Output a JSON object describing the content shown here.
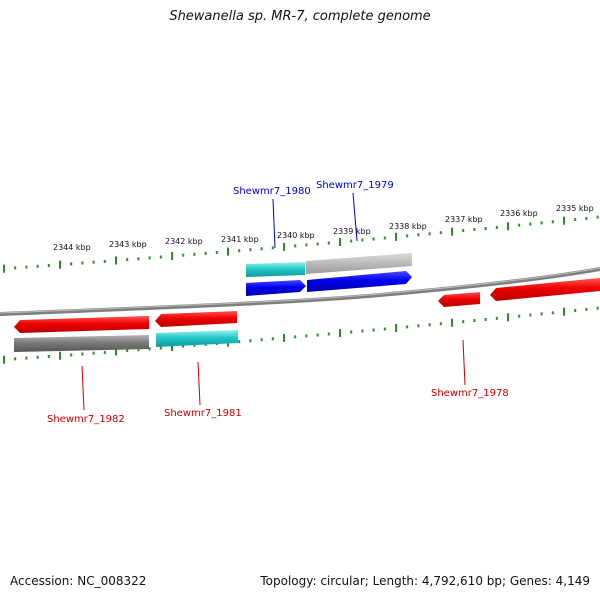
{
  "title": "Shewanella sp. MR-7, complete genome",
  "footer": {
    "accession": "Accession: NC_008322",
    "summary": "Topology: circular; Length: 4,792,610 bp; Genes: 4,149"
  },
  "colors": {
    "backbone": "#7f7f7f",
    "tick": "#2e8b2e",
    "forward_gene": "#0000ee",
    "reverse_gene": "#ee0000",
    "forward_label": "#0000cc",
    "reverse_label": "#cc0000",
    "cyan_feature": "#22c8c8",
    "gray_feature": "#909090"
  },
  "tick_labels": [
    {
      "kbp": 2344,
      "label": "2344 kbp"
    },
    {
      "kbp": 2343,
      "label": "2343 kbp"
    },
    {
      "kbp": 2342,
      "label": "2342 kbp"
    },
    {
      "kbp": 2341,
      "label": "2341 kbp"
    },
    {
      "kbp": 2340,
      "label": "2340 kbp"
    },
    {
      "kbp": 2339,
      "label": "2339 kbp"
    },
    {
      "kbp": 2338,
      "label": "2338 kbp"
    },
    {
      "kbp": 2337,
      "label": "2337 kbp"
    },
    {
      "kbp": 2336,
      "label": "2336 kbp"
    },
    {
      "kbp": 2335,
      "label": "2335 kbp"
    }
  ],
  "genes": [
    {
      "name": "Shewmr7_1980",
      "strand": "forward"
    },
    {
      "name": "Shewmr7_1979",
      "strand": "forward"
    },
    {
      "name": "Shewmr7_1982",
      "strand": "reverse"
    },
    {
      "name": "Shewmr7_1981",
      "strand": "reverse"
    },
    {
      "name": "Shewmr7_1978",
      "strand": "reverse"
    }
  ]
}
